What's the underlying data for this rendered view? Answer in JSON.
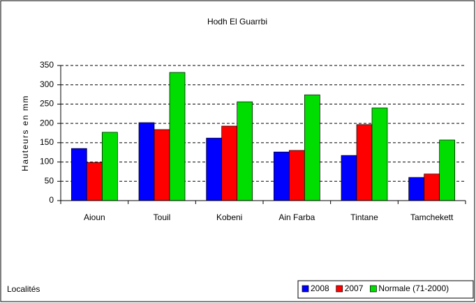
{
  "chart_data": {
    "type": "bar",
    "title": "Hodh El Guarrbi",
    "ylabel": "Hauteurs en mm",
    "xlabel": "Localités",
    "categories": [
      "Aioun",
      "Touil",
      "Kobeni",
      "Ain Farba",
      "Tintane",
      "Tamchekett"
    ],
    "series": [
      {
        "name": "2008",
        "color": "#0000ff",
        "values": [
          135,
          202,
          162,
          126,
          117,
          60
        ]
      },
      {
        "name": "2007",
        "color": "#ff0000",
        "values": [
          99,
          184,
          193,
          130,
          197,
          69
        ]
      },
      {
        "name": "Normale (71-2000)",
        "color": "#00dd00",
        "values": [
          177,
          332,
          256,
          274,
          240,
          157
        ]
      }
    ],
    "ylim": [
      0,
      350
    ],
    "yticks": [
      0,
      50,
      100,
      150,
      200,
      250,
      300,
      350
    ],
    "grid": true,
    "legend": "bottom-right"
  }
}
